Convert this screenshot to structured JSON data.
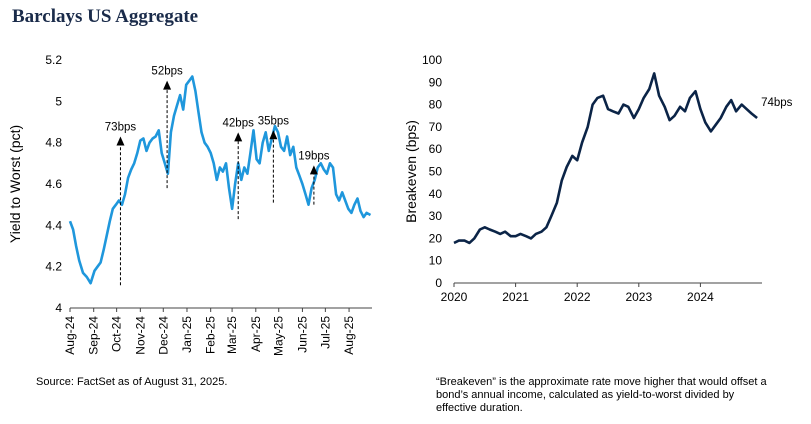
{
  "title": "Barclays US Aggregate",
  "source_note": "Source: FactSet as of August 31, 2025.",
  "footnote": "“Breakeven” is the approximate rate move higher that would offset a bond’s annual income, calculated as yield-to-worst divided by effective duration.",
  "colors": {
    "left_line": "#1f97dc",
    "right_line": "#0b2447",
    "title": "#1a2b4a"
  },
  "chart_data": [
    {
      "type": "line",
      "ylabel": "Yield to Worst (pct)",
      "xlabel": "",
      "ylim": [
        4,
        5.2
      ],
      "yticks": [
        4,
        4.2,
        4.4,
        4.6,
        4.8,
        5,
        5.2
      ],
      "x_range": [
        "2024-08-01",
        "2025-08-31"
      ],
      "x_ticks": [
        "Aug-24",
        "Sep-24",
        "Oct-24",
        "Nov-24",
        "Dec-24",
        "Jan-25",
        "Feb-25",
        "Mar-25",
        "Apr-25",
        "May-25",
        "Jun-25",
        "Jul-25",
        "Aug-25"
      ],
      "grid": false,
      "series": [
        {
          "x": [
            "2024-08-01",
            "2024-08-05",
            "2024-08-09",
            "2024-08-13",
            "2024-08-18",
            "2024-08-23",
            "2024-08-28",
            "2024-09-02",
            "2024-09-06",
            "2024-09-10",
            "2024-09-14",
            "2024-09-18",
            "2024-09-22",
            "2024-09-26",
            "2024-09-30",
            "2024-10-04",
            "2024-10-08",
            "2024-10-12",
            "2024-10-16",
            "2024-10-20",
            "2024-10-24",
            "2024-10-28",
            "2024-11-01",
            "2024-11-05",
            "2024-11-09",
            "2024-11-13",
            "2024-11-17",
            "2024-11-21",
            "2024-11-25",
            "2024-11-29",
            "2024-12-03",
            "2024-12-07",
            "2024-12-11",
            "2024-12-15",
            "2024-12-19",
            "2024-12-23",
            "2024-12-27",
            "2024-12-31",
            "2025-01-04",
            "2025-01-08",
            "2025-01-12",
            "2025-01-16",
            "2025-01-20",
            "2025-01-24",
            "2025-01-28",
            "2025-02-01",
            "2025-02-05",
            "2025-02-09",
            "2025-02-13",
            "2025-02-17",
            "2025-02-21",
            "2025-02-25",
            "2025-03-01",
            "2025-03-05",
            "2025-03-09",
            "2025-03-13",
            "2025-03-17",
            "2025-03-21",
            "2025-03-25",
            "2025-03-29",
            "2025-04-02",
            "2025-04-06",
            "2025-04-10",
            "2025-04-14",
            "2025-04-18",
            "2025-04-22",
            "2025-04-26",
            "2025-04-30",
            "2025-05-04",
            "2025-05-08",
            "2025-05-12",
            "2025-05-16",
            "2025-05-20",
            "2025-05-24",
            "2025-05-28",
            "2025-06-01",
            "2025-06-05",
            "2025-06-09",
            "2025-06-13",
            "2025-06-17",
            "2025-06-21",
            "2025-06-25",
            "2025-06-29",
            "2025-07-03",
            "2025-07-07",
            "2025-07-11",
            "2025-07-15",
            "2025-07-19",
            "2025-07-23",
            "2025-07-27",
            "2025-07-31",
            "2025-08-04",
            "2025-08-08",
            "2025-08-12",
            "2025-08-16",
            "2025-08-20",
            "2025-08-24",
            "2025-08-29"
          ],
          "values": [
            4.42,
            4.38,
            4.3,
            4.23,
            4.17,
            4.15,
            4.12,
            4.18,
            4.2,
            4.22,
            4.28,
            4.35,
            4.42,
            4.48,
            4.5,
            4.52,
            4.5,
            4.55,
            4.63,
            4.67,
            4.7,
            4.75,
            4.81,
            4.82,
            4.76,
            4.8,
            4.82,
            4.83,
            4.86,
            4.75,
            4.7,
            4.65,
            4.85,
            4.93,
            4.98,
            5.03,
            4.96,
            5.08,
            5.1,
            5.12,
            5.05,
            4.95,
            4.85,
            4.8,
            4.78,
            4.75,
            4.7,
            4.62,
            4.68,
            4.66,
            4.7,
            4.58,
            4.48,
            4.6,
            4.7,
            4.62,
            4.68,
            4.65,
            4.75,
            4.86,
            4.72,
            4.7,
            4.8,
            4.85,
            4.76,
            4.82,
            4.88,
            4.85,
            4.78,
            4.76,
            4.83,
            4.74,
            4.78,
            4.68,
            4.64,
            4.6,
            4.55,
            4.5,
            4.58,
            4.62,
            4.68,
            4.7,
            4.67,
            4.65,
            4.7,
            4.68,
            4.55,
            4.52,
            4.56,
            4.52,
            4.48,
            4.46,
            4.5,
            4.53,
            4.47,
            4.44,
            4.46,
            4.45
          ]
        }
      ],
      "annotations": [
        {
          "label": "73bps",
          "x": "2024-10-06",
          "y_from": 4.11,
          "y_to": 4.83
        },
        {
          "label": "52bps",
          "x": "2024-12-06",
          "y_from": 4.58,
          "y_to": 5.1
        },
        {
          "label": "42bps",
          "x": "2025-03-09",
          "y_from": 4.43,
          "y_to": 4.85
        },
        {
          "label": "35bps",
          "x": "2025-04-24",
          "y_from": 4.51,
          "y_to": 4.86
        },
        {
          "label": "19bps",
          "x": "2025-06-16",
          "y_from": 4.5,
          "y_to": 4.69
        }
      ]
    },
    {
      "type": "line",
      "ylabel": "Breakeven (bps)",
      "xlabel": "",
      "ylim": [
        0,
        100
      ],
      "yticks": [
        0,
        10,
        20,
        30,
        40,
        50,
        60,
        70,
        80,
        90,
        100
      ],
      "xlim": [
        2020,
        2025
      ],
      "xticks": [
        2020,
        2021,
        2022,
        2023,
        2024
      ],
      "grid": false,
      "series": [
        {
          "x": [
            2020.0,
            2020.08,
            2020.17,
            2020.25,
            2020.33,
            2020.42,
            2020.5,
            2020.58,
            2020.67,
            2020.75,
            2020.83,
            2020.92,
            2021.0,
            2021.08,
            2021.17,
            2021.25,
            2021.33,
            2021.42,
            2021.5,
            2021.58,
            2021.67,
            2021.75,
            2021.83,
            2021.92,
            2022.0,
            2022.08,
            2022.17,
            2022.25,
            2022.33,
            2022.42,
            2022.5,
            2022.58,
            2022.67,
            2022.75,
            2022.83,
            2022.92,
            2023.0,
            2023.08,
            2023.17,
            2023.25,
            2023.33,
            2023.42,
            2023.5,
            2023.58,
            2023.67,
            2023.75,
            2023.83,
            2023.92,
            2024.0,
            2024.08,
            2024.17,
            2024.25,
            2024.33,
            2024.42,
            2024.5,
            2024.58,
            2024.67,
            2024.75,
            2024.83,
            2024.92
          ],
          "values": [
            18,
            19,
            19,
            18,
            20,
            24,
            25,
            24,
            23,
            22,
            23,
            21,
            21,
            22,
            21,
            20,
            22,
            23,
            25,
            30,
            36,
            46,
            52,
            57,
            55,
            63,
            70,
            80,
            83,
            84,
            78,
            77,
            76,
            80,
            79,
            74,
            78,
            83,
            87,
            94,
            84,
            79,
            73,
            75,
            79,
            77,
            83,
            86,
            78,
            72,
            68,
            71,
            74,
            79,
            82,
            77,
            80,
            78,
            76,
            74
          ]
        }
      ],
      "annotations": [
        {
          "label": "74bps",
          "x": 2024.92,
          "y": 74
        }
      ]
    }
  ]
}
